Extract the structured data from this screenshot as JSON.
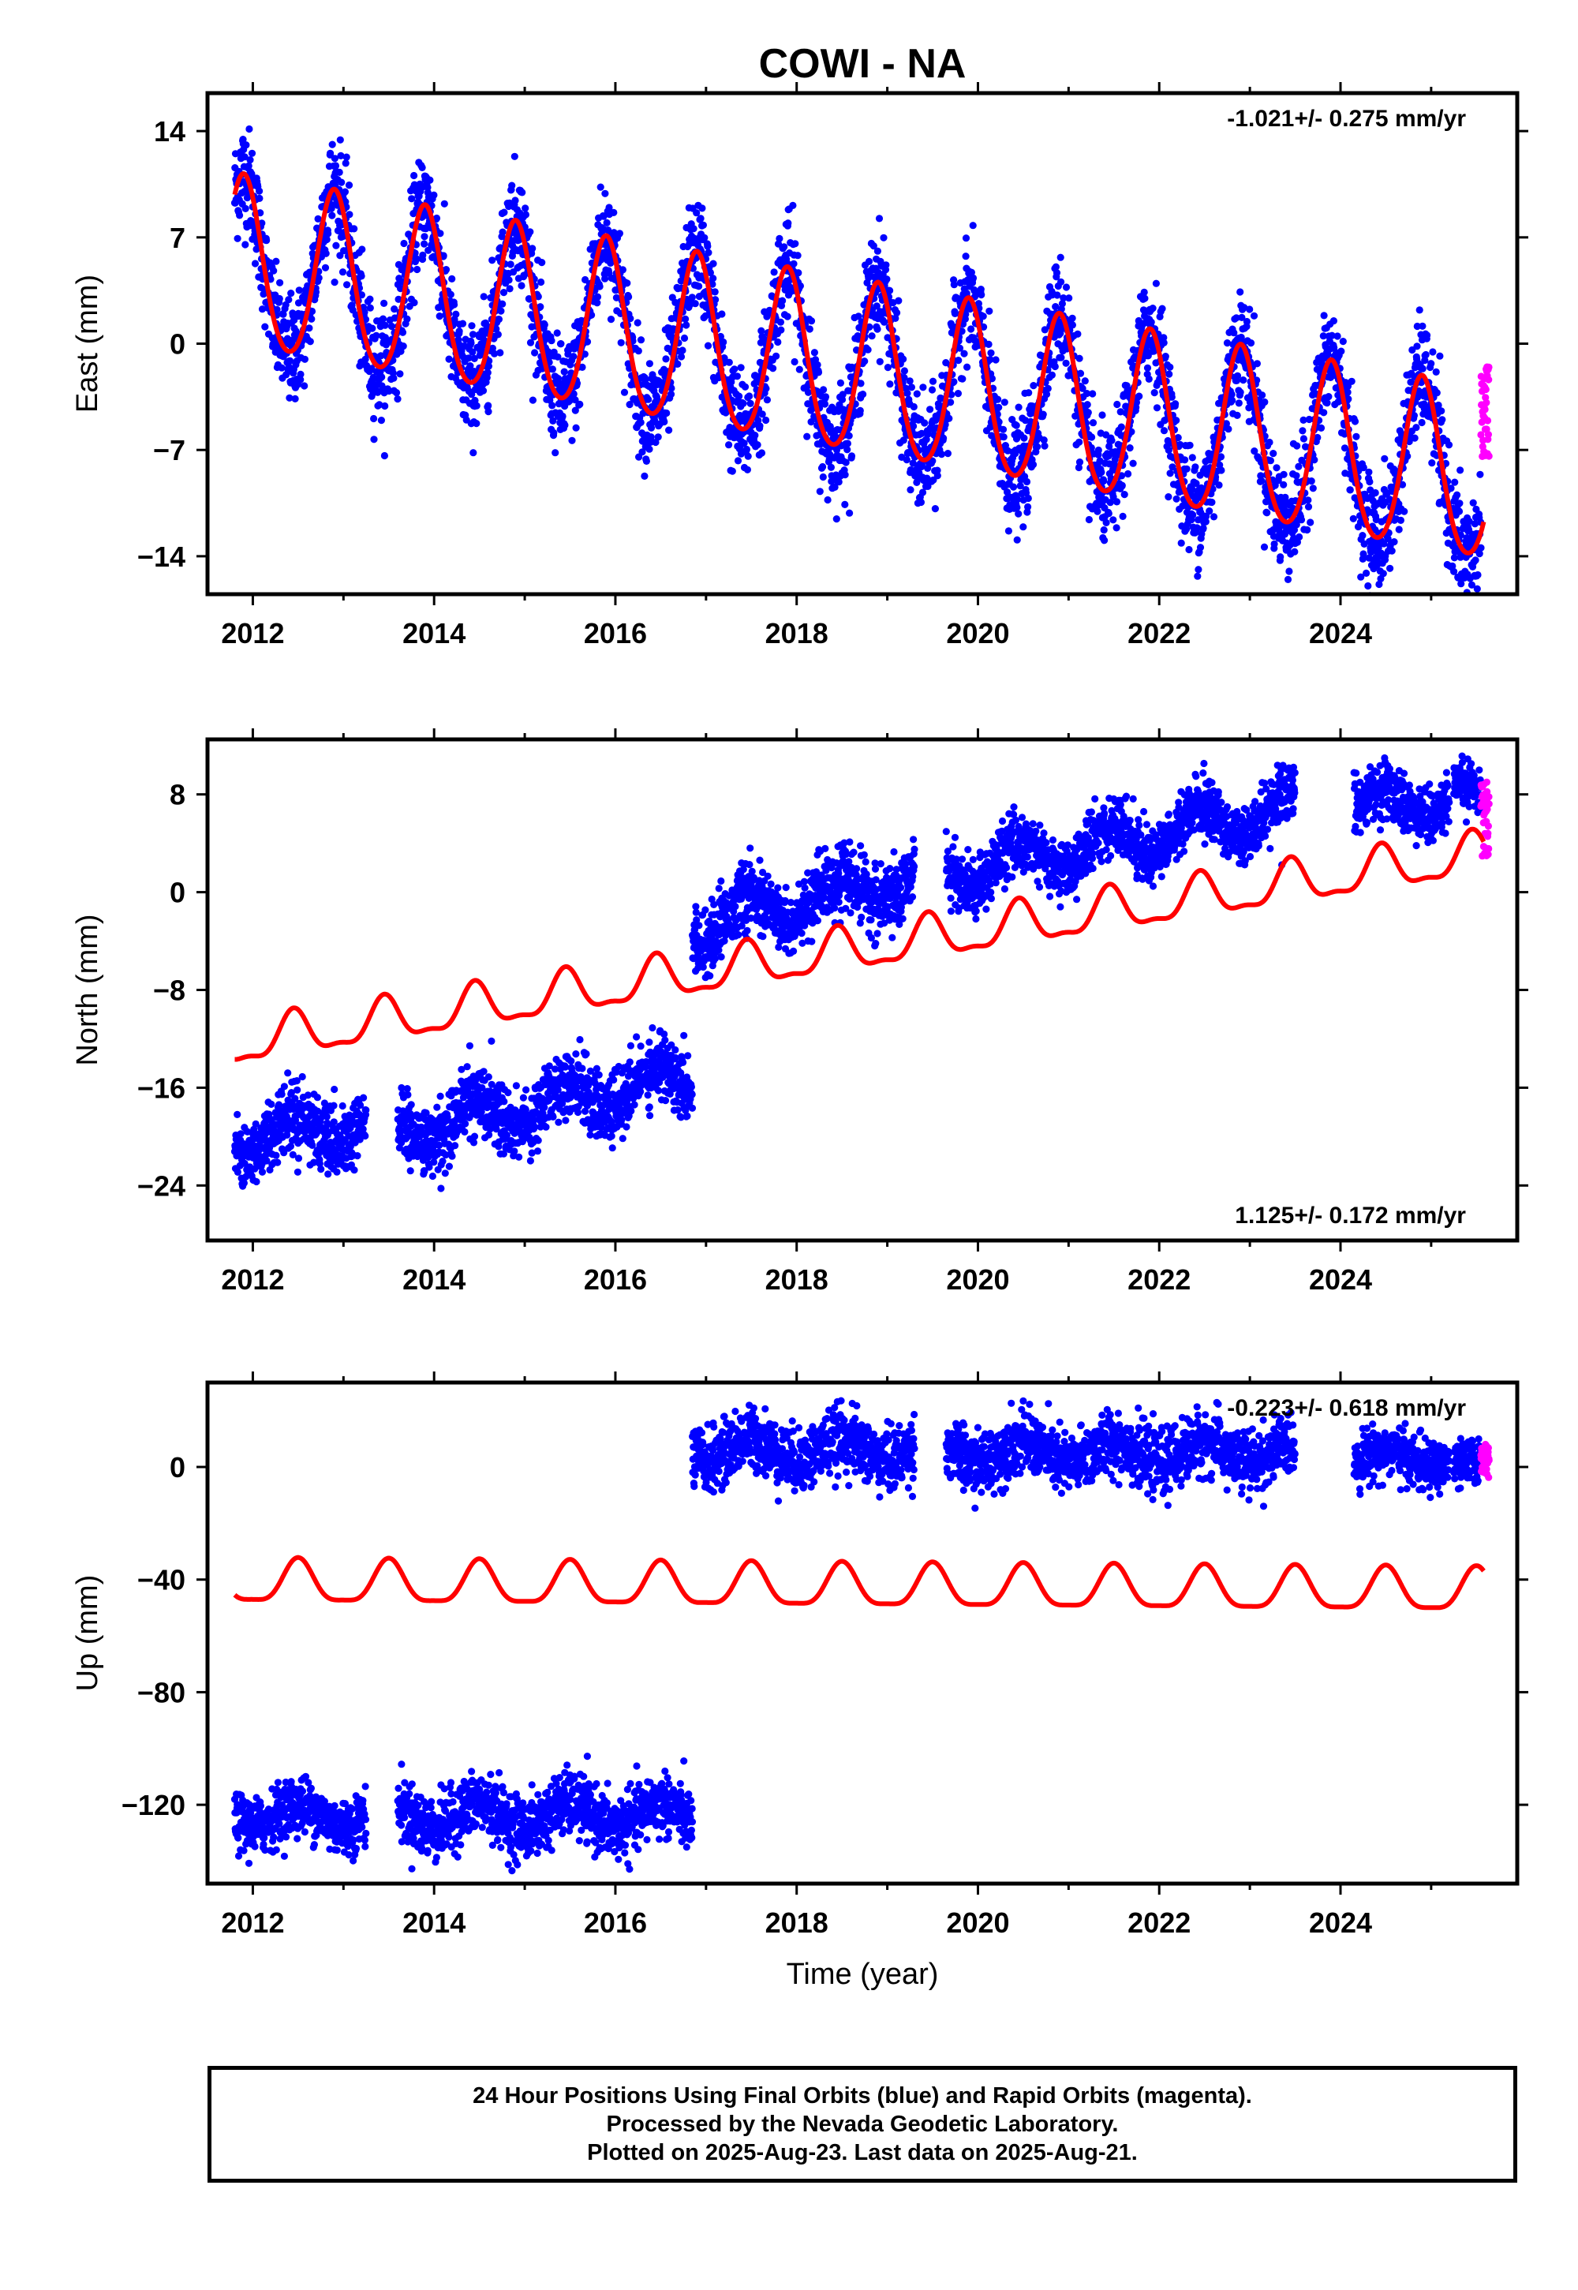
{
  "title": "COWI - NA",
  "colors": {
    "final": "#0000ff",
    "rapid": "#ff00ff",
    "model": "#ff0000",
    "axis": "#000000"
  },
  "xlabel": "Time (year)",
  "footer": {
    "line1": "24 Hour Positions Using Final Orbits (blue) and Rapid Orbits (magenta).",
    "line2": "Processed by the Nevada Geodetic Laboratory.",
    "line3": "Plotted on 2025-Aug-23. Last data on 2025-Aug-21."
  },
  "chart_data": [
    {
      "type": "scatter",
      "panel": "east",
      "ylabel": "East (mm)",
      "rate": "-1.021+/- 0.275 mm/yr",
      "rate_position": "top-right",
      "xlim": [
        2011.5,
        2025.95
      ],
      "ylim": [
        -16.5,
        16.5
      ],
      "xticks": [
        2012,
        2014,
        2016,
        2018,
        2020,
        2022,
        2024
      ],
      "yticks": [
        14,
        7,
        0,
        -7,
        -14
      ],
      "ytick_labels": [
        "14",
        "7",
        "0",
        "−7",
        "−14"
      ],
      "model": {
        "t0": 2011.8,
        "t1": 2025.58,
        "offset": 5.1,
        "rate": -1.021,
        "annual_amp": 5.6,
        "annual_phase_year": 2012.9,
        "semiannual_amp": 0.6,
        "steps": []
      },
      "data_segments": [
        {
          "start": 2011.8,
          "end": 2025.55,
          "noise": 2.2
        }
      ],
      "rapid": {
        "start": 2025.55,
        "end": 2025.64,
        "center": -4.5,
        "spread": 3.0
      },
      "grid": false
    },
    {
      "type": "scatter",
      "panel": "north",
      "ylabel": "North (mm)",
      "rate": "1.125+/- 0.172 mm/yr",
      "rate_position": "bottom-right",
      "xlim": [
        2011.5,
        2025.95
      ],
      "ylim": [
        -28.5,
        12.5
      ],
      "xticks": [
        2012,
        2014,
        2016,
        2018,
        2020,
        2022,
        2024
      ],
      "yticks": [
        8,
        0,
        -8,
        -16,
        -24
      ],
      "ytick_labels": [
        "8",
        "0",
        "−8",
        "−16",
        "−24"
      ],
      "model": {
        "t0": 2011.8,
        "t1": 2025.58,
        "offset": -12.5,
        "rate": 1.125,
        "annual_amp": 1.7,
        "annual_phase_year": 2012.45,
        "semiannual_amp": 0.6,
        "steps": []
      },
      "data_segments": [
        {
          "start": 2011.8,
          "end": 2013.25,
          "base": -20.0,
          "slope": 0.6,
          "noise": 1.4,
          "ann": 1.5
        },
        {
          "start": 2013.6,
          "end": 2016.85,
          "base": -19.5,
          "slope": 1.35,
          "noise": 1.4,
          "ann": 1.5
        },
        {
          "start": 2016.85,
          "end": 2019.3,
          "base": -2.8,
          "slope": 1.6,
          "noise": 1.3,
          "ann": 1.5
        },
        {
          "start": 2019.65,
          "end": 2023.5,
          "base": 1.5,
          "slope": 1.4,
          "noise": 1.2,
          "ann": 1.6
        },
        {
          "start": 2024.15,
          "end": 2025.2,
          "base": 7.3,
          "slope": 0.0,
          "noise": 1.1,
          "ann": 1.0
        },
        {
          "start": 2025.25,
          "end": 2025.55,
          "base": 8.0,
          "slope": 0.0,
          "noise": 1.0,
          "ann": 0.8
        }
      ],
      "rapid": {
        "start": 2025.55,
        "end": 2025.64,
        "center": 6.0,
        "spread": 3.2
      },
      "grid": false
    },
    {
      "type": "scatter",
      "panel": "up",
      "ylabel": "Up (mm)",
      "rate": "-0.223+/- 0.618 mm/yr",
      "rate_position": "top-right",
      "xlim": [
        2011.5,
        2025.95
      ],
      "ylim": [
        -148,
        30
      ],
      "xticks": [
        2012,
        2014,
        2016,
        2018,
        2020,
        2022,
        2024
      ],
      "yticks": [
        0,
        -40,
        -80,
        -120
      ],
      "ytick_labels": [
        "0",
        "−40",
        "−80",
        "−120"
      ],
      "model": {
        "t0": 2011.8,
        "t1": 2025.58,
        "offset": -41.5,
        "rate": -0.223,
        "annual_amp": 7.5,
        "annual_phase_year": 2012.5,
        "semiannual_amp": 2.0,
        "steps": []
      },
      "data_segments": [
        {
          "start": 2011.8,
          "end": 2013.25,
          "base": -124.0,
          "slope": 0.0,
          "noise": 5.0,
          "ann": 4.0
        },
        {
          "start": 2013.6,
          "end": 2016.85,
          "base": -124.0,
          "slope": 0.0,
          "noise": 5.5,
          "ann": 4.5
        },
        {
          "start": 2016.85,
          "end": 2019.3,
          "base": 6.0,
          "slope": 0.0,
          "noise": 5.5,
          "ann": 4.0
        },
        {
          "start": 2019.65,
          "end": 2023.5,
          "base": 5.0,
          "slope": 0.0,
          "noise": 5.5,
          "ann": 4.0
        },
        {
          "start": 2024.15,
          "end": 2025.2,
          "base": 3.0,
          "slope": 0.0,
          "noise": 4.5,
          "ann": 3.0
        },
        {
          "start": 2025.25,
          "end": 2025.55,
          "base": 0.0,
          "slope": 0.0,
          "noise": 4.0,
          "ann": 2.0
        }
      ],
      "rapid": {
        "start": 2025.55,
        "end": 2025.64,
        "center": 2.0,
        "spread": 6.0
      },
      "grid": false
    }
  ]
}
